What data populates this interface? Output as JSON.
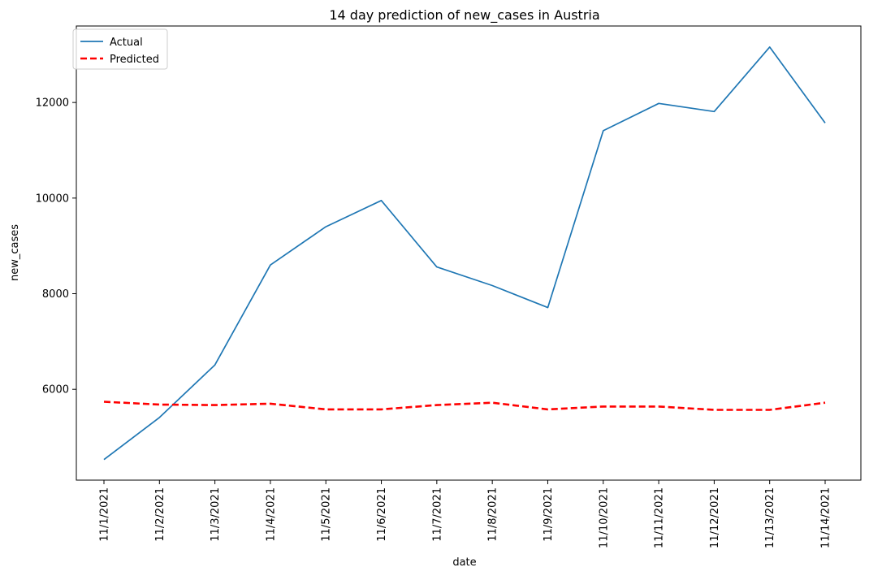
{
  "chart_data": {
    "type": "line",
    "title": "14 day prediction of new_cases in Austria",
    "xlabel": "date",
    "ylabel": "new_cases",
    "categories": [
      "11/1/2021",
      "11/2/2021",
      "11/3/2021",
      "11/4/2021",
      "11/5/2021",
      "11/6/2021",
      "11/7/2021",
      "11/8/2021",
      "11/9/2021",
      "11/10/2021",
      "11/11/2021",
      "11/12/2021",
      "11/13/2021",
      "11/14/2021"
    ],
    "ylim": [
      4100,
      13600
    ],
    "yticks": [
      6000,
      8000,
      10000,
      12000
    ],
    "ytick_labels": [
      "6000",
      "8000",
      "10000",
      "12000"
    ],
    "grid": false,
    "legend_position": "top-left",
    "series": [
      {
        "name": "Actual",
        "color": "#1f77b4",
        "style": "solid",
        "values": [
          4530,
          5410,
          6510,
          8600,
          9400,
          9950,
          8560,
          8170,
          7710,
          11410,
          11980,
          11810,
          13160,
          11570
        ]
      },
      {
        "name": "Predicted",
        "color": "#ff0000",
        "style": "dashed",
        "values": [
          5740,
          5680,
          5670,
          5700,
          5580,
          5580,
          5670,
          5720,
          5580,
          5640,
          5640,
          5570,
          5570,
          5720
        ]
      }
    ]
  }
}
